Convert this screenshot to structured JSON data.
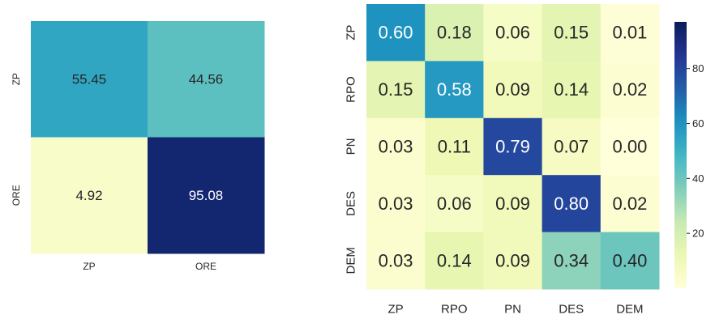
{
  "chart_data": [
    {
      "type": "heatmap",
      "title": "",
      "xlabel": "",
      "ylabel": "",
      "x_categories": [
        "ZP",
        "ORE"
      ],
      "y_categories": [
        "ZP",
        "ORE"
      ],
      "values": [
        [
          55.45,
          44.56
        ],
        [
          4.92,
          95.08
        ]
      ],
      "value_labels": [
        [
          "55.45",
          "44.56"
        ],
        [
          "4.92",
          "95.08"
        ]
      ],
      "colormap": "YlGnBu",
      "vmin": 0,
      "vmax": 100,
      "colorbar": false
    },
    {
      "type": "heatmap",
      "title": "",
      "xlabel": "",
      "ylabel": "",
      "x_categories": [
        "ZP",
        "RPO",
        "PN",
        "DES",
        "DEM"
      ],
      "y_categories": [
        "ZP",
        "RPO",
        "PN",
        "DES",
        "DEM"
      ],
      "values": [
        [
          60,
          18,
          6,
          15,
          1
        ],
        [
          15,
          58,
          9,
          14,
          2
        ],
        [
          3,
          11,
          79,
          7,
          0
        ],
        [
          3,
          6,
          9,
          80,
          2
        ],
        [
          3,
          14,
          9,
          34,
          40
        ]
      ],
      "value_labels": [
        [
          "0.60",
          "0.18",
          "0.06",
          "0.15",
          "0.01"
        ],
        [
          "0.15",
          "0.58",
          "0.09",
          "0.14",
          "0.02"
        ],
        [
          "0.03",
          "0.11",
          "0.79",
          "0.07",
          "0.00"
        ],
        [
          "0.03",
          "0.06",
          "0.09",
          "0.80",
          "0.02"
        ],
        [
          "0.03",
          "0.14",
          "0.09",
          "0.34",
          "0.40"
        ]
      ],
      "colormap": "YlGnBu",
      "vmin": 0,
      "vmax": 97,
      "colorbar": true,
      "colorbar_ticks": [
        20,
        40,
        60,
        80
      ],
      "colorbar_tick_labels": [
        "20",
        "40",
        "60",
        "80"
      ]
    }
  ]
}
